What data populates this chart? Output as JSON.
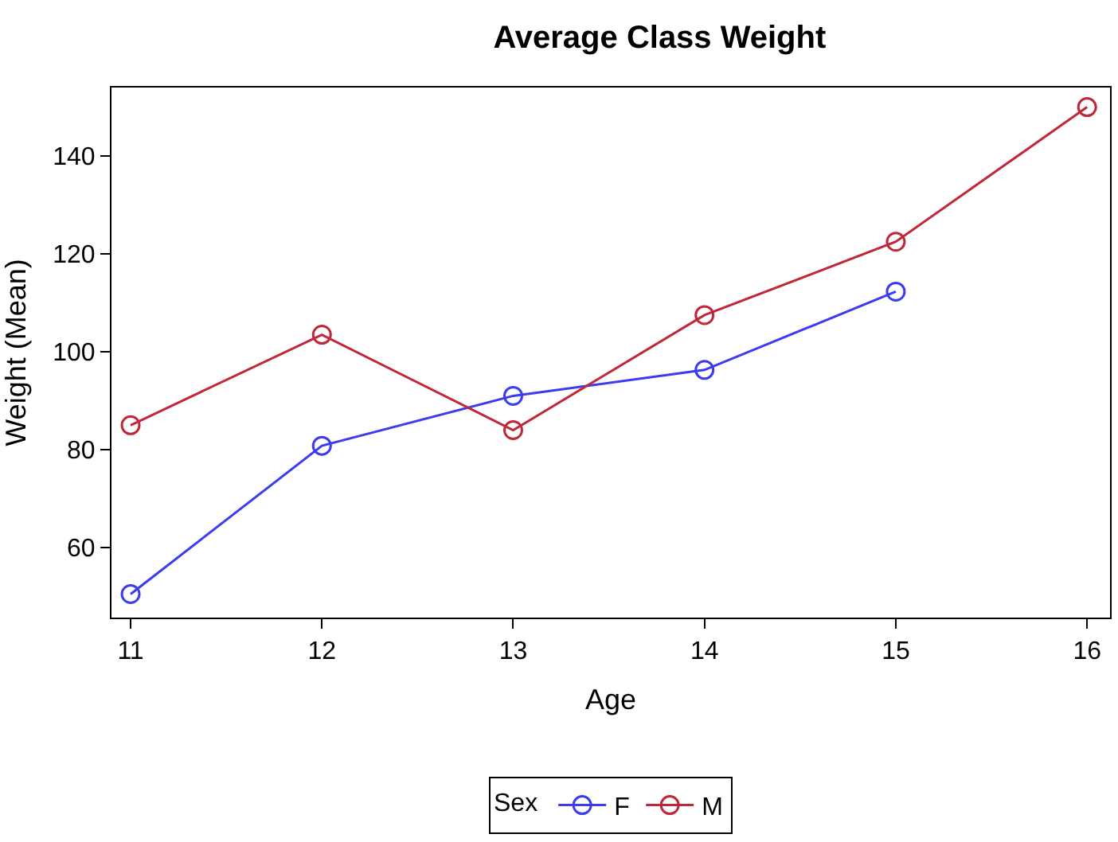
{
  "chart_data": {
    "type": "line",
    "title": "Average Class Weight",
    "xlabel": "Age",
    "ylabel": "Weight (Mean)",
    "legend_title": "Sex",
    "x": [
      11,
      12,
      13,
      14,
      15,
      16
    ],
    "series": [
      {
        "name": "F",
        "color": "#3b3bf0",
        "values": [
          50.5,
          80.8,
          91.0,
          96.3,
          112.3,
          null
        ]
      },
      {
        "name": "M",
        "color": "#c0283a",
        "values": [
          85.0,
          103.5,
          84.0,
          107.5,
          122.5,
          150.0
        ]
      }
    ],
    "xlim": [
      10.9,
      16.12
    ],
    "xticks": [
      11,
      12,
      13,
      14,
      15,
      16
    ],
    "ylim": [
      45.7,
      154
    ],
    "yticks": [
      60,
      80,
      100,
      120,
      140
    ],
    "legend": "bottom",
    "marker": "circle",
    "line_style": "solid"
  }
}
